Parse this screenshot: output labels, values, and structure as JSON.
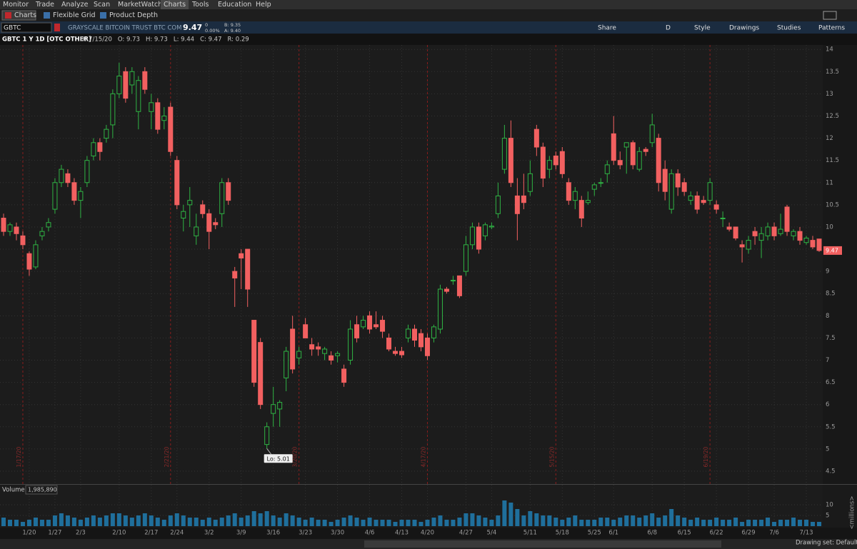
{
  "menu": [
    "Monitor",
    "Trade",
    "Analyze",
    "Scan",
    "MarketWatch",
    "Charts",
    "Tools",
    "Education",
    "Help"
  ],
  "tabs": [
    "Charts",
    "Flexible Grid",
    "Product Depth"
  ],
  "toolbar": {
    "symbol": "GBTC",
    "description": "GRAYSCALE BITCOIN TRUST BTC COM",
    "last": "9.47",
    "change": "0",
    "change_pct": "0.00%",
    "bid": "B: 9.35",
    "ask": "A: 9.40",
    "buttons": [
      "Share",
      "D",
      "Style",
      "Drawings",
      "Studies",
      "Patterns"
    ]
  },
  "footer": "Drawing set: Default",
  "chart_data": {
    "type": "candlestick",
    "title": "GBTC 1 Y 1D [OTC OTHER]",
    "info": [
      "D: 7/15/20",
      "O: 9.73",
      "H: 9.73",
      "L: 9.44",
      "C: 9.47",
      "R: 0.29"
    ],
    "up_color": "#2fb344",
    "down_color": "#f26060",
    "ohlc": [
      [
        10.2,
        10.3,
        9.8,
        9.9
      ],
      [
        9.9,
        10.1,
        9.8,
        10.05
      ],
      [
        10.0,
        10.1,
        9.7,
        9.85
      ],
      [
        9.8,
        9.9,
        9.5,
        9.6
      ],
      [
        9.4,
        9.45,
        8.9,
        9.05
      ],
      [
        9.1,
        9.7,
        9.05,
        9.6
      ],
      [
        9.8,
        10.0,
        9.7,
        9.9
      ],
      [
        10.0,
        10.2,
        9.9,
        10.1
      ],
      [
        10.4,
        11.1,
        10.3,
        11.0
      ],
      [
        11.0,
        11.4,
        10.9,
        11.3
      ],
      [
        11.2,
        11.3,
        10.9,
        11.0
      ],
      [
        11.0,
        11.1,
        10.5,
        10.6
      ],
      [
        10.6,
        10.9,
        10.2,
        10.8
      ],
      [
        11.0,
        11.6,
        10.9,
        11.5
      ],
      [
        11.6,
        12.0,
        11.5,
        11.9
      ],
      [
        11.9,
        12.0,
        11.5,
        11.7
      ],
      [
        12.0,
        12.3,
        11.9,
        12.2
      ],
      [
        12.3,
        13.1,
        12.0,
        13.0
      ],
      [
        13.0,
        13.7,
        12.9,
        13.4
      ],
      [
        13.5,
        13.6,
        12.8,
        12.9
      ],
      [
        13.2,
        13.6,
        13.0,
        13.5
      ],
      [
        12.6,
        13.4,
        12.2,
        13.3
      ],
      [
        13.5,
        13.6,
        13.0,
        13.1
      ],
      [
        12.6,
        13.0,
        12.2,
        12.8
      ],
      [
        12.8,
        12.9,
        12.1,
        12.2
      ],
      [
        12.4,
        12.7,
        12.2,
        12.5
      ],
      [
        12.7,
        12.8,
        11.6,
        11.7
      ],
      [
        11.5,
        11.6,
        10.4,
        10.5
      ],
      [
        10.2,
        10.5,
        9.9,
        10.35
      ],
      [
        10.5,
        10.9,
        10.0,
        10.6
      ],
      [
        9.8,
        10.3,
        9.6,
        10.0
      ],
      [
        10.5,
        10.6,
        10.2,
        10.3
      ],
      [
        10.3,
        10.4,
        9.5,
        9.9
      ],
      [
        10.1,
        10.2,
        9.95,
        10.05
      ],
      [
        10.3,
        11.1,
        10.0,
        11.0
      ],
      [
        11.0,
        11.1,
        10.5,
        10.6
      ],
      [
        9.0,
        9.1,
        8.2,
        8.85
      ],
      [
        9.4,
        9.5,
        8.6,
        9.3
      ],
      [
        9.5,
        9.5,
        8.2,
        8.6
      ],
      [
        7.9,
        7.9,
        6.4,
        6.5
      ],
      [
        7.4,
        7.5,
        5.9,
        6.0
      ],
      [
        5.1,
        5.6,
        5.01,
        5.5
      ],
      [
        5.8,
        6.4,
        5.5,
        6.0
      ],
      [
        5.9,
        6.1,
        5.5,
        6.05
      ],
      [
        6.6,
        7.3,
        6.3,
        7.2
      ],
      [
        7.7,
        8.0,
        6.7,
        6.8
      ],
      [
        7.05,
        7.3,
        6.9,
        7.2
      ],
      [
        7.8,
        7.95,
        7.5,
        7.5
      ],
      [
        7.35,
        7.5,
        7.1,
        7.25
      ],
      [
        7.3,
        7.4,
        7.1,
        7.25
      ],
      [
        7.15,
        7.3,
        7.0,
        7.25
      ],
      [
        7.1,
        7.2,
        6.9,
        7.0
      ],
      [
        7.1,
        7.2,
        6.95,
        7.15
      ],
      [
        6.8,
        6.9,
        6.4,
        6.5
      ],
      [
        7.0,
        7.9,
        6.9,
        7.7
      ],
      [
        7.8,
        8.0,
        7.4,
        7.5
      ],
      [
        7.75,
        8.0,
        7.7,
        7.9
      ],
      [
        8.0,
        8.1,
        7.6,
        7.7
      ],
      [
        7.8,
        8.1,
        7.7,
        7.75
      ],
      [
        7.9,
        8.0,
        7.5,
        7.65
      ],
      [
        7.5,
        7.6,
        7.2,
        7.25
      ],
      [
        7.2,
        7.3,
        7.1,
        7.15
      ],
      [
        7.2,
        7.3,
        7.05,
        7.12
      ],
      [
        7.5,
        7.8,
        7.4,
        7.7
      ],
      [
        7.7,
        7.8,
        7.3,
        7.45
      ],
      [
        7.6,
        7.7,
        7.2,
        7.3
      ],
      [
        7.5,
        7.6,
        7.0,
        7.1
      ],
      [
        7.5,
        7.8,
        7.4,
        7.75
      ],
      [
        7.7,
        8.7,
        7.6,
        8.6
      ],
      [
        8.6,
        8.65,
        8.5,
        8.55
      ],
      [
        8.8,
        8.9,
        8.7,
        8.8
      ],
      [
        8.9,
        8.9,
        8.4,
        8.45
      ],
      [
        9.0,
        9.8,
        8.9,
        9.6
      ],
      [
        9.6,
        10.1,
        9.5,
        10.0
      ],
      [
        10.0,
        10.1,
        9.4,
        9.5
      ],
      [
        9.8,
        10.1,
        9.7,
        10.05
      ],
      [
        10.0,
        10.1,
        9.95,
        10.02
      ],
      [
        10.3,
        11.0,
        10.2,
        10.7
      ],
      [
        11.3,
        12.3,
        11.2,
        12.0
      ],
      [
        12.0,
        12.4,
        10.9,
        11.0
      ],
      [
        10.7,
        11.1,
        9.7,
        10.3
      ],
      [
        10.7,
        11.2,
        10.4,
        10.55
      ],
      [
        10.8,
        11.5,
        10.7,
        11.2
      ],
      [
        12.2,
        12.3,
        11.6,
        11.8
      ],
      [
        11.8,
        11.9,
        10.9,
        11.1
      ],
      [
        11.3,
        11.6,
        11.1,
        11.5
      ],
      [
        11.6,
        11.7,
        11.3,
        11.4
      ],
      [
        11.7,
        11.8,
        11.1,
        11.2
      ],
      [
        11.0,
        11.1,
        10.5,
        10.6
      ],
      [
        10.6,
        10.9,
        10.4,
        10.8
      ],
      [
        10.6,
        10.7,
        10.0,
        10.2
      ],
      [
        10.55,
        10.8,
        10.5,
        10.6
      ],
      [
        10.85,
        11.0,
        10.7,
        10.95
      ],
      [
        11.0,
        11.1,
        10.9,
        11.0
      ],
      [
        11.2,
        11.5,
        11.0,
        11.4
      ],
      [
        12.1,
        12.5,
        11.4,
        11.5
      ],
      [
        11.5,
        11.7,
        11.3,
        11.4
      ],
      [
        11.8,
        11.9,
        11.2,
        11.9
      ],
      [
        11.9,
        11.95,
        11.3,
        11.4
      ],
      [
        11.3,
        11.8,
        11.25,
        11.7
      ],
      [
        11.75,
        11.8,
        11.6,
        11.7
      ],
      [
        11.9,
        12.55,
        11.8,
        12.3
      ],
      [
        12.0,
        12.1,
        10.8,
        11.0
      ],
      [
        11.3,
        11.5,
        10.6,
        10.8
      ],
      [
        10.4,
        11.3,
        10.3,
        11.2
      ],
      [
        11.2,
        11.3,
        10.7,
        10.9
      ],
      [
        11.0,
        11.1,
        10.7,
        10.8
      ],
      [
        10.6,
        10.8,
        10.5,
        10.7
      ],
      [
        10.7,
        10.8,
        10.3,
        10.4
      ],
      [
        10.6,
        10.7,
        10.5,
        10.55
      ],
      [
        10.6,
        11.1,
        10.5,
        11.0
      ],
      [
        10.5,
        10.6,
        10.3,
        10.4
      ],
      [
        10.2,
        10.35,
        10.0,
        10.2
      ],
      [
        10.0,
        10.1,
        9.9,
        9.95
      ],
      [
        10.0,
        10.0,
        9.7,
        9.75
      ],
      [
        9.6,
        9.7,
        9.2,
        9.55
      ],
      [
        9.5,
        9.8,
        9.4,
        9.7
      ],
      [
        9.9,
        10.0,
        9.6,
        9.8
      ],
      [
        9.7,
        10.0,
        9.3,
        9.85
      ],
      [
        9.8,
        10.1,
        9.7,
        10.0
      ],
      [
        10.0,
        10.1,
        9.7,
        9.8
      ],
      [
        9.85,
        10.3,
        9.8,
        9.95
      ],
      [
        10.45,
        10.5,
        9.8,
        9.9
      ],
      [
        9.8,
        9.95,
        9.7,
        9.9
      ],
      [
        9.9,
        10.0,
        9.6,
        9.7
      ],
      [
        9.65,
        9.8,
        9.6,
        9.75
      ],
      [
        9.7,
        9.8,
        9.5,
        9.55
      ],
      [
        9.73,
        9.73,
        9.44,
        9.47
      ]
    ],
    "ylim": [
      4.21,
      14.1
    ],
    "yticks": [
      14,
      13.5,
      13,
      12.5,
      12,
      11.5,
      11,
      10.5,
      10,
      9.5,
      9,
      8.5,
      8,
      7.5,
      7,
      6.5,
      6,
      5.5,
      5,
      4.5
    ],
    "last_price": 9.47,
    "low_annotation": {
      "index": 41,
      "label": "Lo: 5.01"
    },
    "xticks": [
      {
        "value": 4,
        "label": "1/20"
      },
      {
        "value": 8,
        "label": "1/27"
      },
      {
        "value": 12,
        "label": "2/3"
      },
      {
        "value": 18,
        "label": "2/10"
      },
      {
        "value": 23,
        "label": "2/17"
      },
      {
        "value": 27,
        "label": "2/24"
      },
      {
        "value": 32,
        "label": "3/2"
      },
      {
        "value": 37,
        "label": "3/9"
      },
      {
        "value": 42,
        "label": "3/16"
      },
      {
        "value": 47,
        "label": "3/23"
      },
      {
        "value": 52,
        "label": "3/30"
      },
      {
        "value": 57,
        "label": "4/6"
      },
      {
        "value": 62,
        "label": "4/13"
      },
      {
        "value": 66,
        "label": "4/20"
      },
      {
        "value": 72,
        "label": "4/27"
      },
      {
        "value": 76,
        "label": "5/4"
      },
      {
        "value": 82,
        "label": "5/11"
      },
      {
        "value": 87,
        "label": "5/18"
      },
      {
        "value": 92,
        "label": "5/25"
      },
      {
        "value": 95,
        "label": "6/1"
      },
      {
        "value": 101,
        "label": "6/8"
      },
      {
        "value": 106,
        "label": "6/15"
      },
      {
        "value": 111,
        "label": "6/22"
      },
      {
        "value": 116,
        "label": "6/29"
      },
      {
        "value": 120,
        "label": "7/6"
      },
      {
        "value": 125,
        "label": "7/13"
      }
    ],
    "period_markers": [
      {
        "value": 3,
        "label": "1/17/20"
      },
      {
        "value": 26,
        "label": "2/21/20"
      },
      {
        "value": 46,
        "label": "3/20/20"
      },
      {
        "value": 66,
        "label": "4/17/20"
      },
      {
        "value": 86,
        "label": "5/15/20"
      },
      {
        "value": 110,
        "label": "6/19/20"
      }
    ],
    "volume": {
      "title": "Volume",
      "last": "1,985,890",
      "color": "#1f6f9c",
      "unit_label": "<millions>",
      "ylim": [
        0,
        19
      ],
      "yticks": [
        10,
        5
      ],
      "values": [
        4,
        3,
        3,
        2,
        3,
        4,
        3,
        3,
        5,
        6,
        5,
        4,
        3,
        4,
        5,
        4,
        5,
        6,
        6,
        5,
        4,
        5,
        6,
        5,
        4,
        3,
        5,
        6,
        5,
        4,
        4,
        3,
        4,
        3,
        4,
        5,
        6,
        4,
        5,
        7,
        6,
        7,
        5,
        4,
        6,
        5,
        4,
        3,
        4,
        3,
        3,
        2,
        3,
        4,
        5,
        4,
        3,
        4,
        3,
        3,
        3,
        2,
        3,
        3,
        3,
        2,
        3,
        4,
        5,
        3,
        3,
        4,
        6,
        6,
        5,
        4,
        3,
        5,
        12,
        11,
        8,
        5,
        7,
        6,
        5,
        5,
        4,
        3,
        4,
        5,
        3,
        3,
        3,
        4,
        4,
        3,
        4,
        5,
        5,
        4,
        5,
        6,
        4,
        5,
        8,
        5,
        4,
        3,
        4,
        3,
        3,
        4,
        3,
        3,
        4,
        2,
        3,
        3,
        3,
        4,
        2,
        3,
        3,
        4,
        3,
        3,
        2,
        2
      ]
    }
  }
}
